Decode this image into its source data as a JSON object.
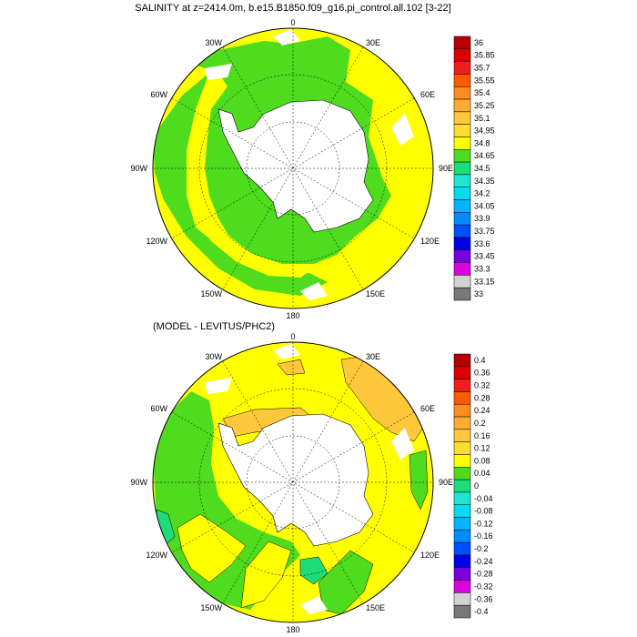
{
  "panels": [
    {
      "title": "SALINITY at z=2414.0m, b.e15.B1850.f09_g16.pi_control.all.102 [3-22]",
      "lon_labels": [
        "0",
        "30E",
        "60E",
        "90E",
        "120E",
        "150E",
        "180",
        "150W",
        "120W",
        "90W",
        "60W",
        "30W"
      ],
      "colorbar": {
        "labels": [
          "36",
          "35.85",
          "35.7",
          "35.55",
          "35.4",
          "35.25",
          "35.1",
          "34.95",
          "34.8",
          "34.65",
          "34.5",
          "34.35",
          "34.2",
          "34.05",
          "33.9",
          "33.75",
          "33.6",
          "33.45",
          "33.3",
          "33.15",
          "33"
        ],
        "colors": [
          "#b40000",
          "#dc0000",
          "#f01e1e",
          "#ff5a00",
          "#ff8c1e",
          "#ffaa32",
          "#ffc83c",
          "#ffdc32",
          "#ffff00",
          "#50dc1e",
          "#1edc78",
          "#1ee6d2",
          "#00dcf0",
          "#00b4ff",
          "#008cff",
          "#0050ff",
          "#0000e6",
          "#7800dc",
          "#dc00dc",
          "#d2d2d2",
          "#787878"
        ]
      }
    },
    {
      "title": "(MODEL - LEVITUS/PHC2)",
      "lon_labels": [
        "0",
        "30E",
        "60E",
        "90E",
        "120E",
        "150E",
        "180",
        "150W",
        "120W",
        "90W",
        "60W",
        "30W"
      ],
      "colorbar": {
        "labels": [
          "0.4",
          "0.36",
          "0.32",
          "0.28",
          "0.24",
          "0.2",
          "0.16",
          "0.12",
          "0.08",
          "0.04",
          "0",
          "-0.04",
          "-0.08",
          "-0.12",
          "-0.16",
          "-0.2",
          "-0.24",
          "-0.28",
          "-0.32",
          "-0.36",
          "-0.4"
        ],
        "colors": [
          "#b40000",
          "#dc0000",
          "#f01e1e",
          "#ff5a00",
          "#ff8c1e",
          "#ffaa32",
          "#ffc83c",
          "#ffdc32",
          "#ffff00",
          "#50dc1e",
          "#1edc78",
          "#1ee6d2",
          "#00dcf0",
          "#00b4ff",
          "#008cff",
          "#0050ff",
          "#0000e6",
          "#7800dc",
          "#dc00dc",
          "#d2d2d2",
          "#787878"
        ]
      }
    }
  ]
}
